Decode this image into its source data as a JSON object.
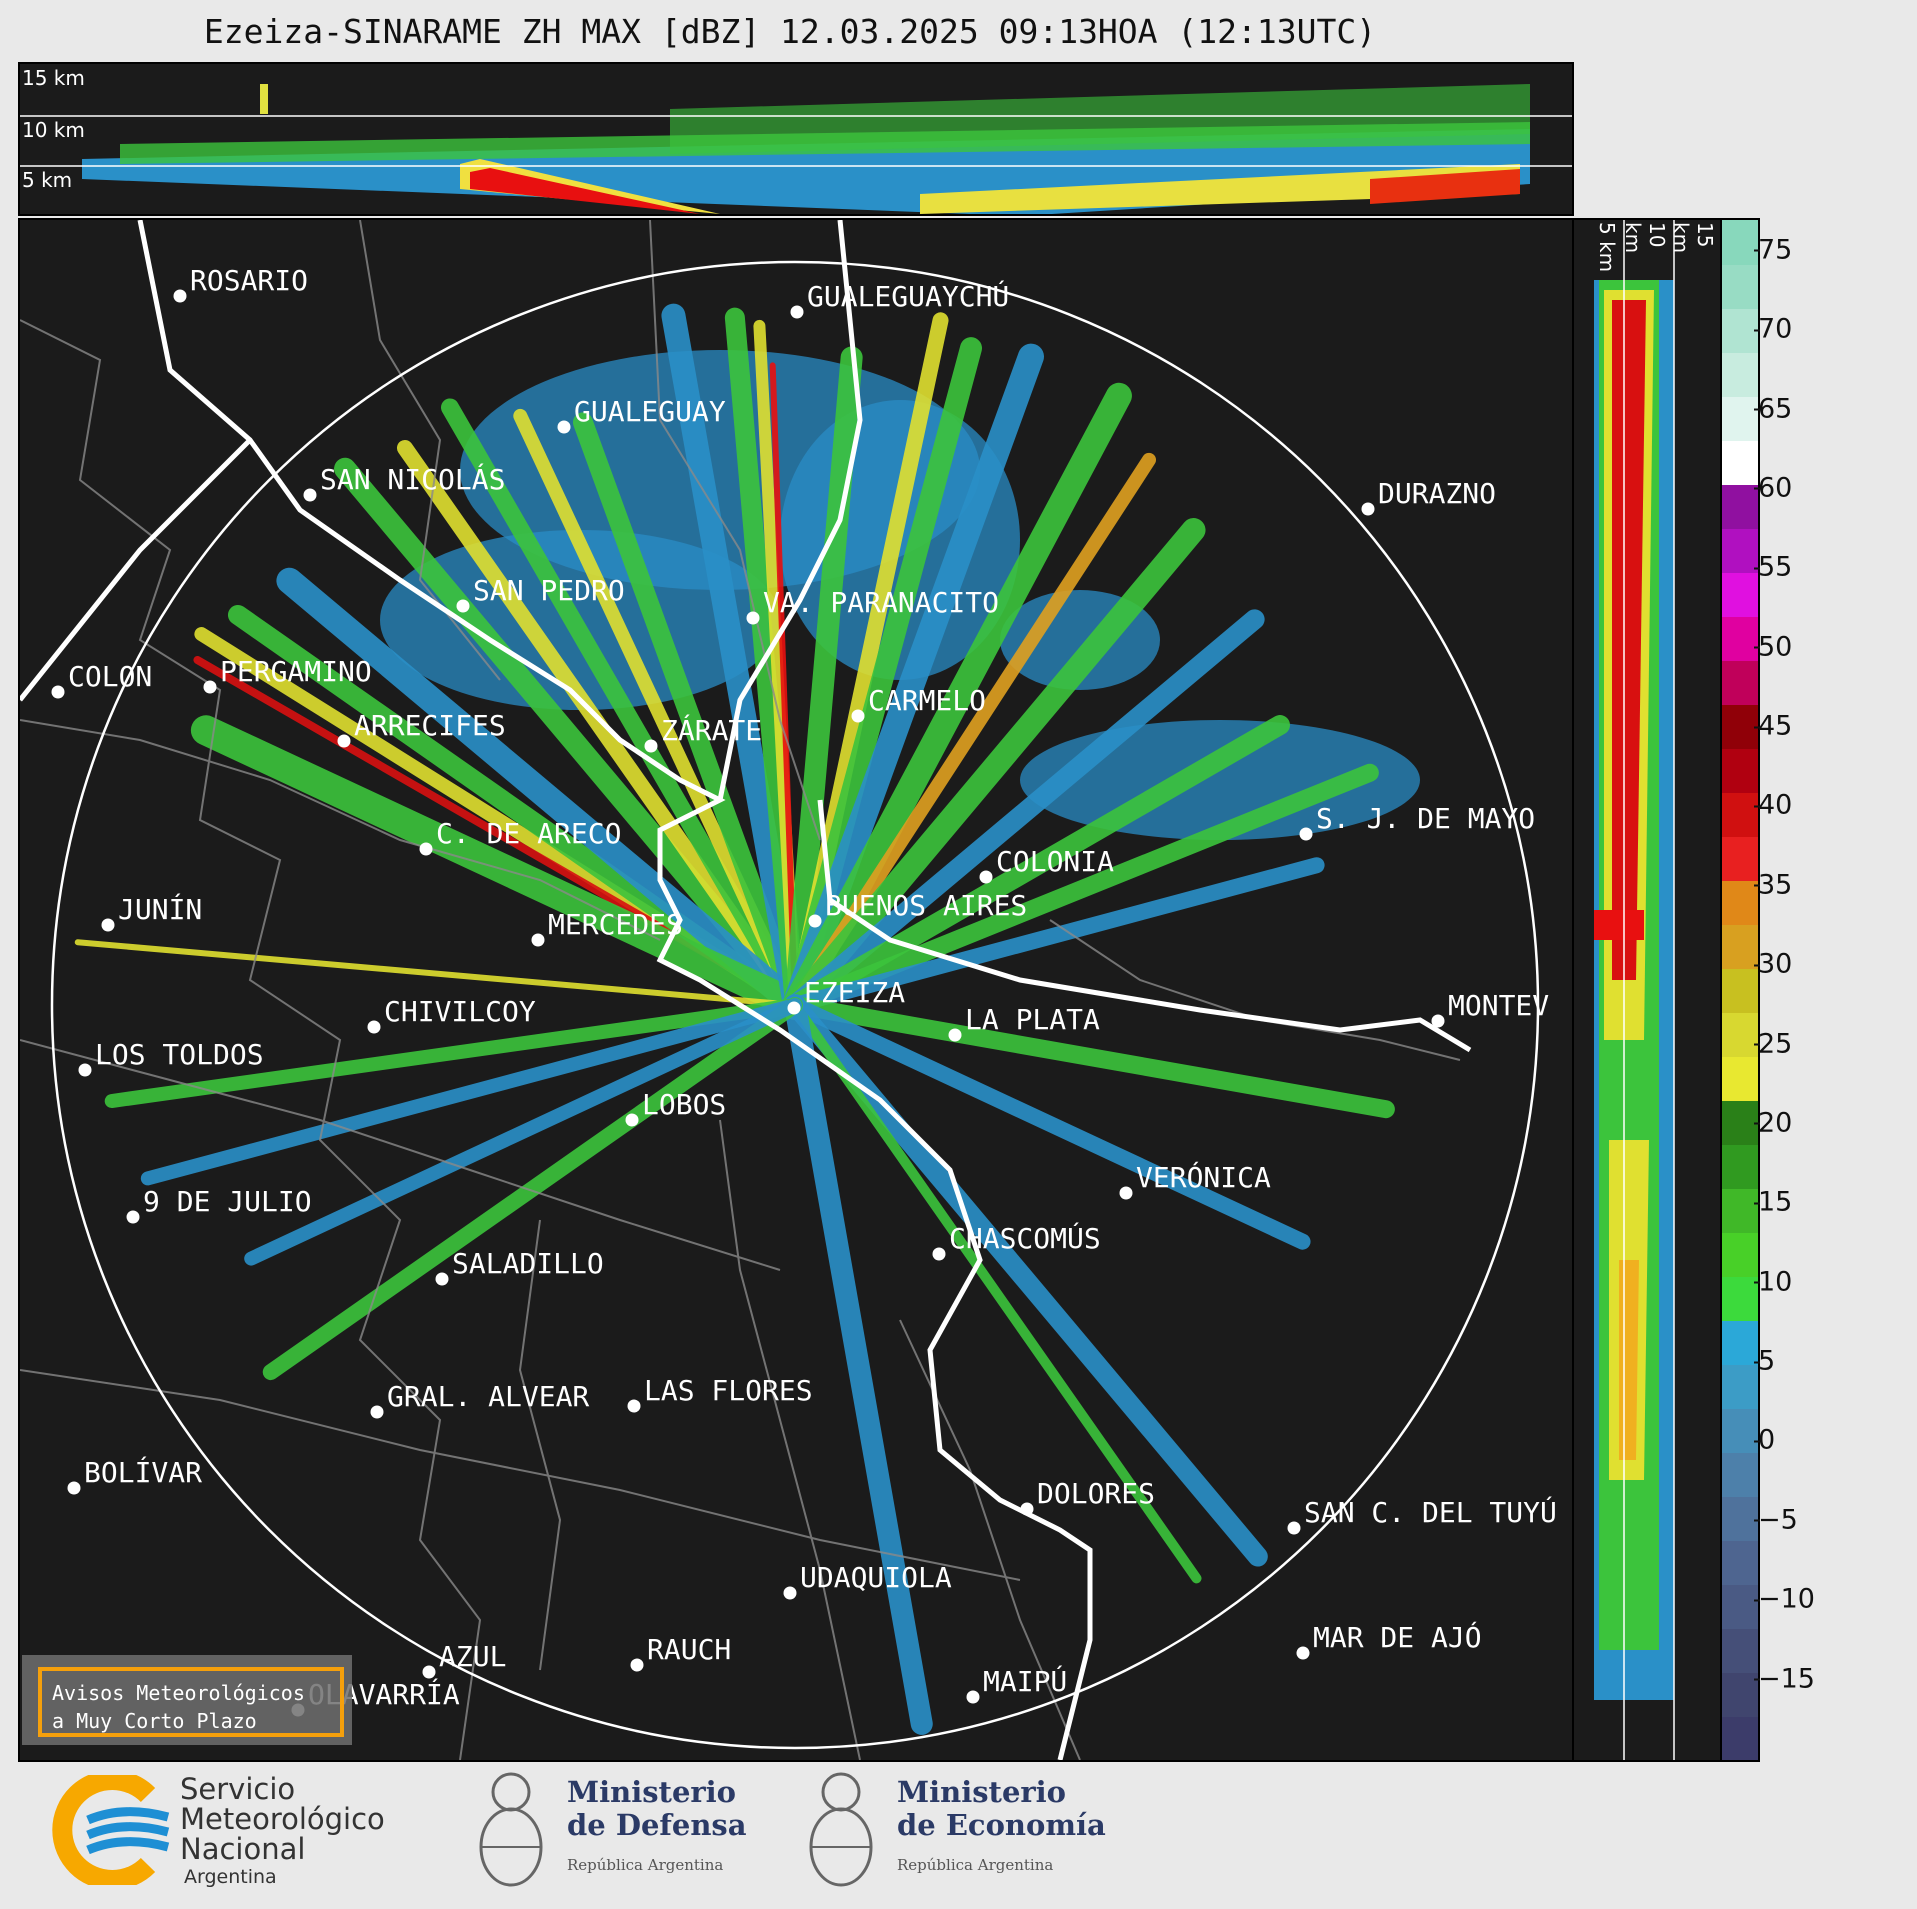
{
  "title": "Ezeiza-SINARAME ZH MAX [dBZ] 12.03.2025 09:13HOA (12:13UTC)",
  "height_labels": {
    "h15": "15 km",
    "h10": "10 km",
    "h5": "5 km"
  },
  "colorbar": {
    "ticks": [
      "75",
      "70",
      "65",
      "60",
      "55",
      "50",
      "45",
      "40",
      "35",
      "30",
      "25",
      "20",
      "15",
      "10",
      "5",
      "0",
      "−5",
      "−10",
      "−15"
    ],
    "range": [
      -20,
      77
    ]
  },
  "cities": [
    {
      "name": "ROSARIO"
    },
    {
      "name": "GUALEGUAYCHÚ"
    },
    {
      "name": "GUALEGUAY"
    },
    {
      "name": "SAN NICOLÁS"
    },
    {
      "name": "DURAZNO"
    },
    {
      "name": "SAN PEDRO"
    },
    {
      "name": "VA. PARANACITO"
    },
    {
      "name": "COLON"
    },
    {
      "name": "PERGAMINO"
    },
    {
      "name": "CARMELO"
    },
    {
      "name": "ARRECIFES"
    },
    {
      "name": "ZÁRATE"
    },
    {
      "name": "S. J. DE MAYO"
    },
    {
      "name": "C. DE ARECO"
    },
    {
      "name": "COLONIA"
    },
    {
      "name": "JUNÍN"
    },
    {
      "name": "BUENOS AIRES"
    },
    {
      "name": "MERCEDES"
    },
    {
      "name": "EZEIZA"
    },
    {
      "name": "MONTEV"
    },
    {
      "name": "CHIVILCOY"
    },
    {
      "name": "LA PLATA"
    },
    {
      "name": "LOS TOLDOS"
    },
    {
      "name": "LOBOS"
    },
    {
      "name": "VERÓNICA"
    },
    {
      "name": "9 DE JULIO"
    },
    {
      "name": "CHASCOMÚS"
    },
    {
      "name": "SALADILLO"
    },
    {
      "name": "GRAL. ALVEAR"
    },
    {
      "name": "LAS FLORES"
    },
    {
      "name": "BOLÍVAR"
    },
    {
      "name": "DOLORES"
    },
    {
      "name": "SAN C. DEL TUYÚ"
    },
    {
      "name": "UDAQUIOLA"
    },
    {
      "name": "MAR DE AJÓ"
    },
    {
      "name": "AZUL"
    },
    {
      "name": "RAUCH"
    },
    {
      "name": "MAIPÚ"
    },
    {
      "name": "OLAVARRÍA"
    }
  ],
  "warning": {
    "line1": "Avisos Meteorológicos",
    "line2": "a Muy Corto Plazo"
  },
  "logos": {
    "smn": {
      "l1": "Servicio",
      "l2": "Meteorológico",
      "l3": "Nacional",
      "l4": "Argentina"
    },
    "defensa": {
      "l1": "Ministerio",
      "l2": "de Defensa",
      "sub": "República Argentina"
    },
    "economia": {
      "l1": "Ministerio",
      "l2": "de Economía",
      "sub": "República Argentina"
    }
  },
  "colors": {
    "panel_bg": "#1b1b1b",
    "ring": "#ffffff",
    "warning_border": "#f5a00c",
    "smn_orange": "#f7a800",
    "smn_blue": "#1e8fd4"
  }
}
